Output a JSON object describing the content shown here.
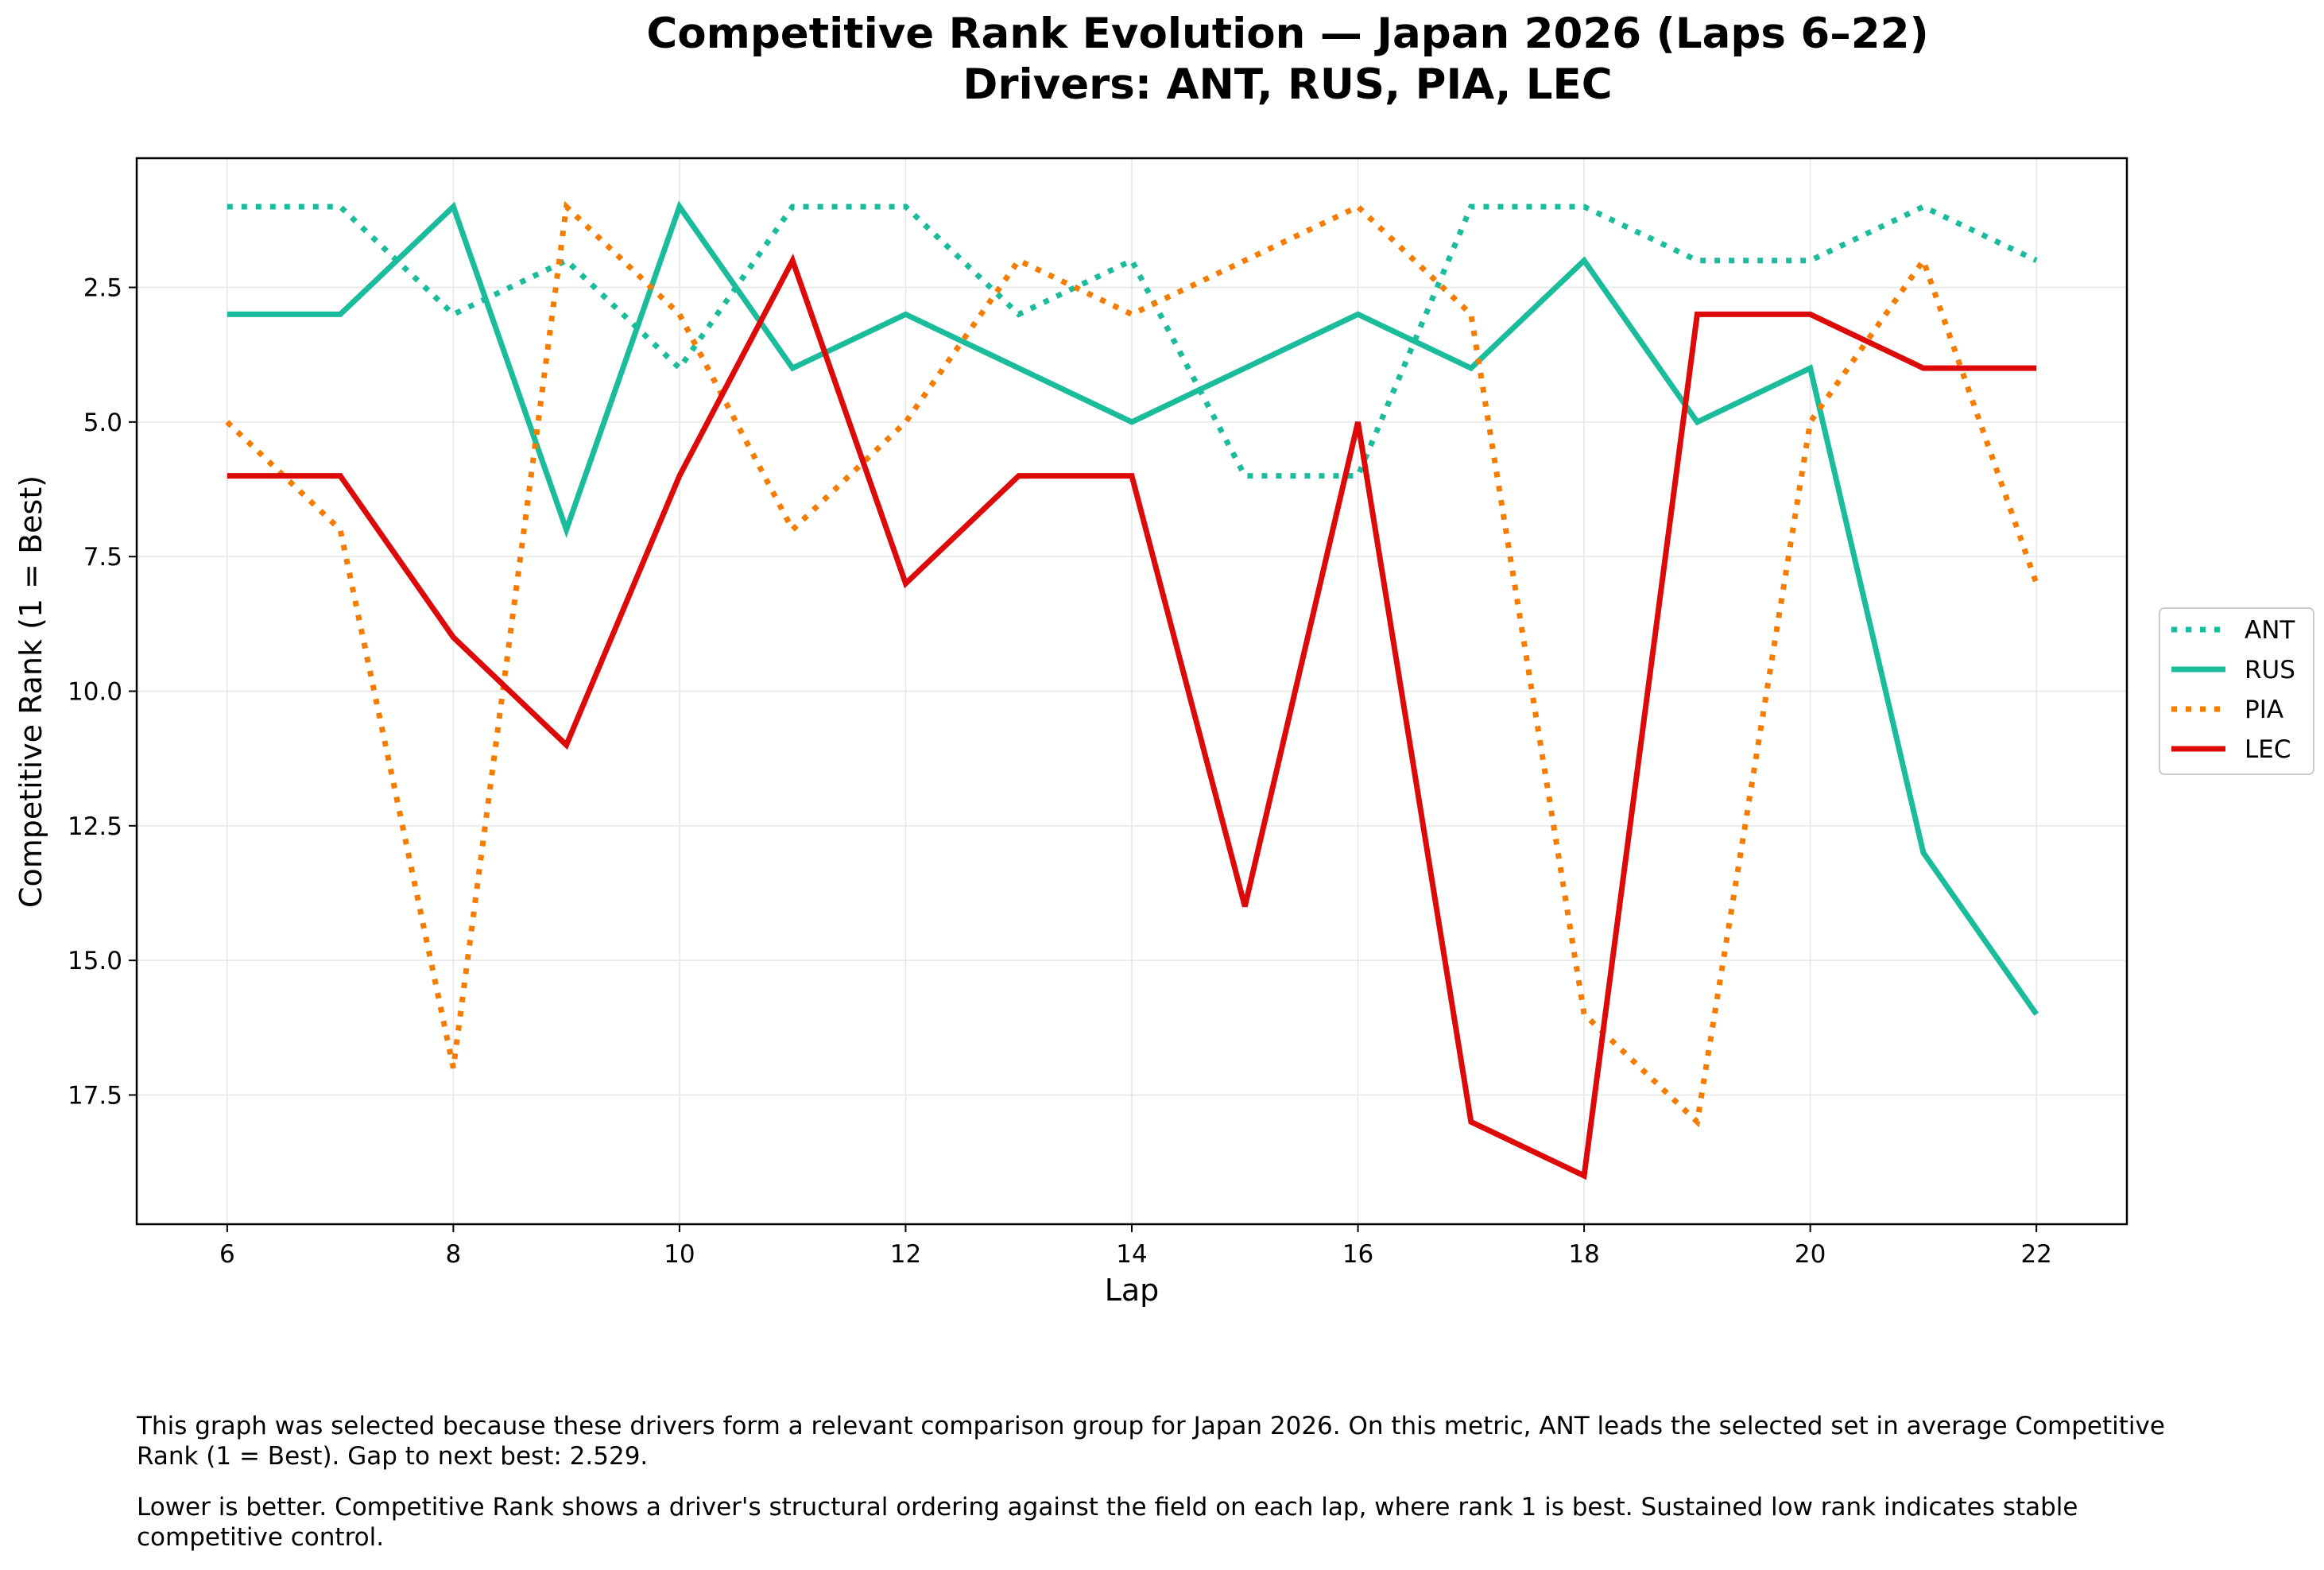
{
  "chart_data": {
    "type": "line",
    "title": "Competitive Rank Evolution — Japan 2026 (Laps 6–22)",
    "subtitle": "Drivers: ANT, RUS, PIA, LEC",
    "xlabel": "Lap",
    "ylabel": "Competitive Rank (1 = Best)",
    "x": [
      6,
      7,
      8,
      9,
      10,
      11,
      12,
      13,
      14,
      15,
      16,
      17,
      18,
      19,
      20,
      21,
      22
    ],
    "xticks": [
      "6",
      "8",
      "10",
      "12",
      "14",
      "16",
      "18",
      "20",
      "22"
    ],
    "yticks": [
      "2.5",
      "5.0",
      "7.5",
      "10.0",
      "12.5",
      "15.0",
      "17.5"
    ],
    "xlim": [
      5.2,
      22.8
    ],
    "ylim": [
      19.9,
      0.1
    ],
    "y_inverted": true,
    "grid": true,
    "legend_position": "outside-right",
    "series": [
      {
        "name": "ANT",
        "color": "#1abc9c",
        "style": "dotted",
        "values": [
          1,
          1,
          3,
          2,
          4,
          1,
          1,
          3,
          2,
          6,
          6,
          1,
          1,
          2,
          2,
          1,
          2
        ]
      },
      {
        "name": "RUS",
        "color": "#1abc9c",
        "style": "solid",
        "values": [
          3,
          3,
          1,
          7,
          1,
          4,
          3,
          4,
          5,
          4,
          3,
          4,
          2,
          5,
          4,
          13,
          16
        ]
      },
      {
        "name": "PIA",
        "color": "#f57c00",
        "style": "dotted",
        "values": [
          5,
          7,
          17,
          1,
          3,
          7,
          5,
          2,
          3,
          2,
          1,
          3,
          16,
          18,
          5,
          2,
          8
        ]
      },
      {
        "name": "LEC",
        "color": "#dd0a0a",
        "style": "solid",
        "values": [
          6,
          6,
          9,
          11,
          6,
          2,
          8,
          6,
          6,
          14,
          5,
          18,
          19,
          3,
          3,
          4,
          4
        ]
      }
    ]
  },
  "captions": [
    "This graph was selected because these drivers form a relevant comparison group for Japan 2026. On this metric, ANT leads the selected set in average Competitive Rank (1 = Best). Gap to next best: 2.529.",
    "Lower is better. Competitive Rank shows a driver's structural ordering against the field on each lap, where rank 1 is best. Sustained low rank indicates stable competitive control."
  ]
}
